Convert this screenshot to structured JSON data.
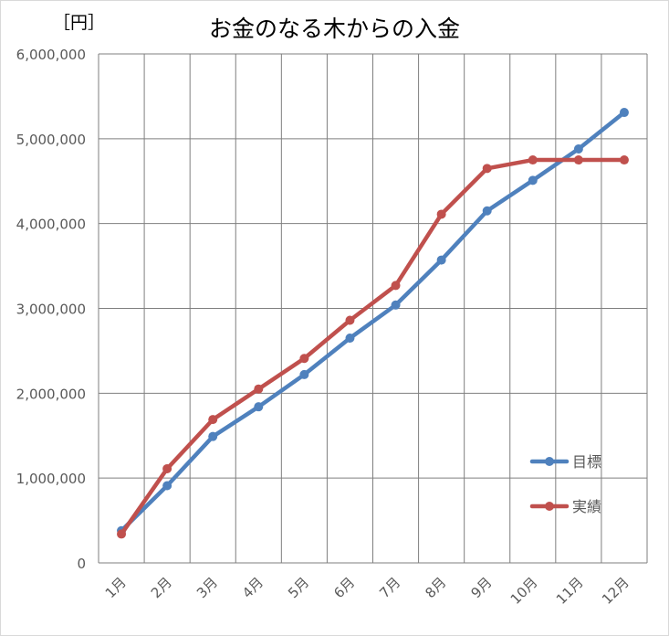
{
  "chart_data": {
    "type": "line",
    "title": "お金のなる木からの入金",
    "unit_label": "［円］",
    "categories": [
      "1月",
      "2月",
      "3月",
      "4月",
      "5月",
      "6月",
      "7月",
      "8月",
      "9月",
      "10月",
      "11月",
      "12月"
    ],
    "ylim": [
      0,
      6000000
    ],
    "yticks": [
      0,
      1000000,
      2000000,
      3000000,
      4000000,
      5000000,
      6000000
    ],
    "ytick_labels": [
      "0",
      "1,000,000",
      "2,000,000",
      "3,000,000",
      "4,000,000",
      "5,000,000",
      "6,000,000"
    ],
    "grid": true,
    "legend_position": "right",
    "series": [
      {
        "name": "目標",
        "color": "#4f81bd",
        "values": [
          380000,
          910000,
          1490000,
          1840000,
          2220000,
          2650000,
          3040000,
          3570000,
          4150000,
          4510000,
          4880000,
          5310000
        ]
      },
      {
        "name": "実績",
        "color": "#c0504d",
        "values": [
          340000,
          1110000,
          1690000,
          2050000,
          2410000,
          2860000,
          3270000,
          4110000,
          4650000,
          4750000,
          4750000,
          4750000
        ]
      }
    ]
  }
}
